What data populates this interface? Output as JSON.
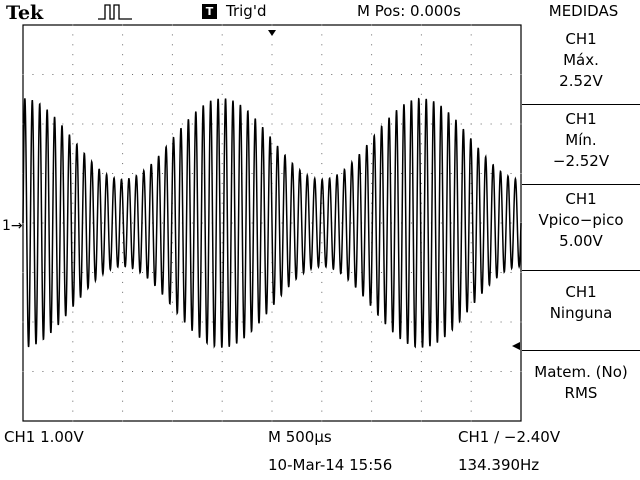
{
  "brand": "Tek",
  "acquire_icon": "pulse-icon",
  "trigger": {
    "badge": "T",
    "status": "Trig'd"
  },
  "m_pos": "M Pos: 0.000s",
  "side_menu": {
    "title": "MEDIDAS",
    "items": [
      {
        "lines": [
          "CH1",
          "Máx.",
          "2.52V"
        ]
      },
      {
        "lines": [
          "CH1",
          "Mín.",
          "−2.52V"
        ]
      },
      {
        "lines": [
          "CH1",
          "Vpico−pico",
          "5.00V"
        ]
      },
      {
        "lines": [
          "CH1",
          "Ninguna"
        ]
      },
      {
        "lines": [
          "Matem. (No)",
          "RMS"
        ]
      }
    ]
  },
  "channel_marker": "1",
  "bottom": {
    "ch1_scale": "CH1  1.00V",
    "timebase": "M 500μs",
    "trigger_level": "CH1 ∕ −2.40V",
    "datetime": "10-Mar-14 15:56",
    "frequency": "134.390Hz"
  },
  "waveform": {
    "carrier_cycles": 67,
    "envelope_max": 2.52,
    "envelope_min": 0.88,
    "envelope_cycles": 2.5,
    "volts_per_div": 1.0
  }
}
